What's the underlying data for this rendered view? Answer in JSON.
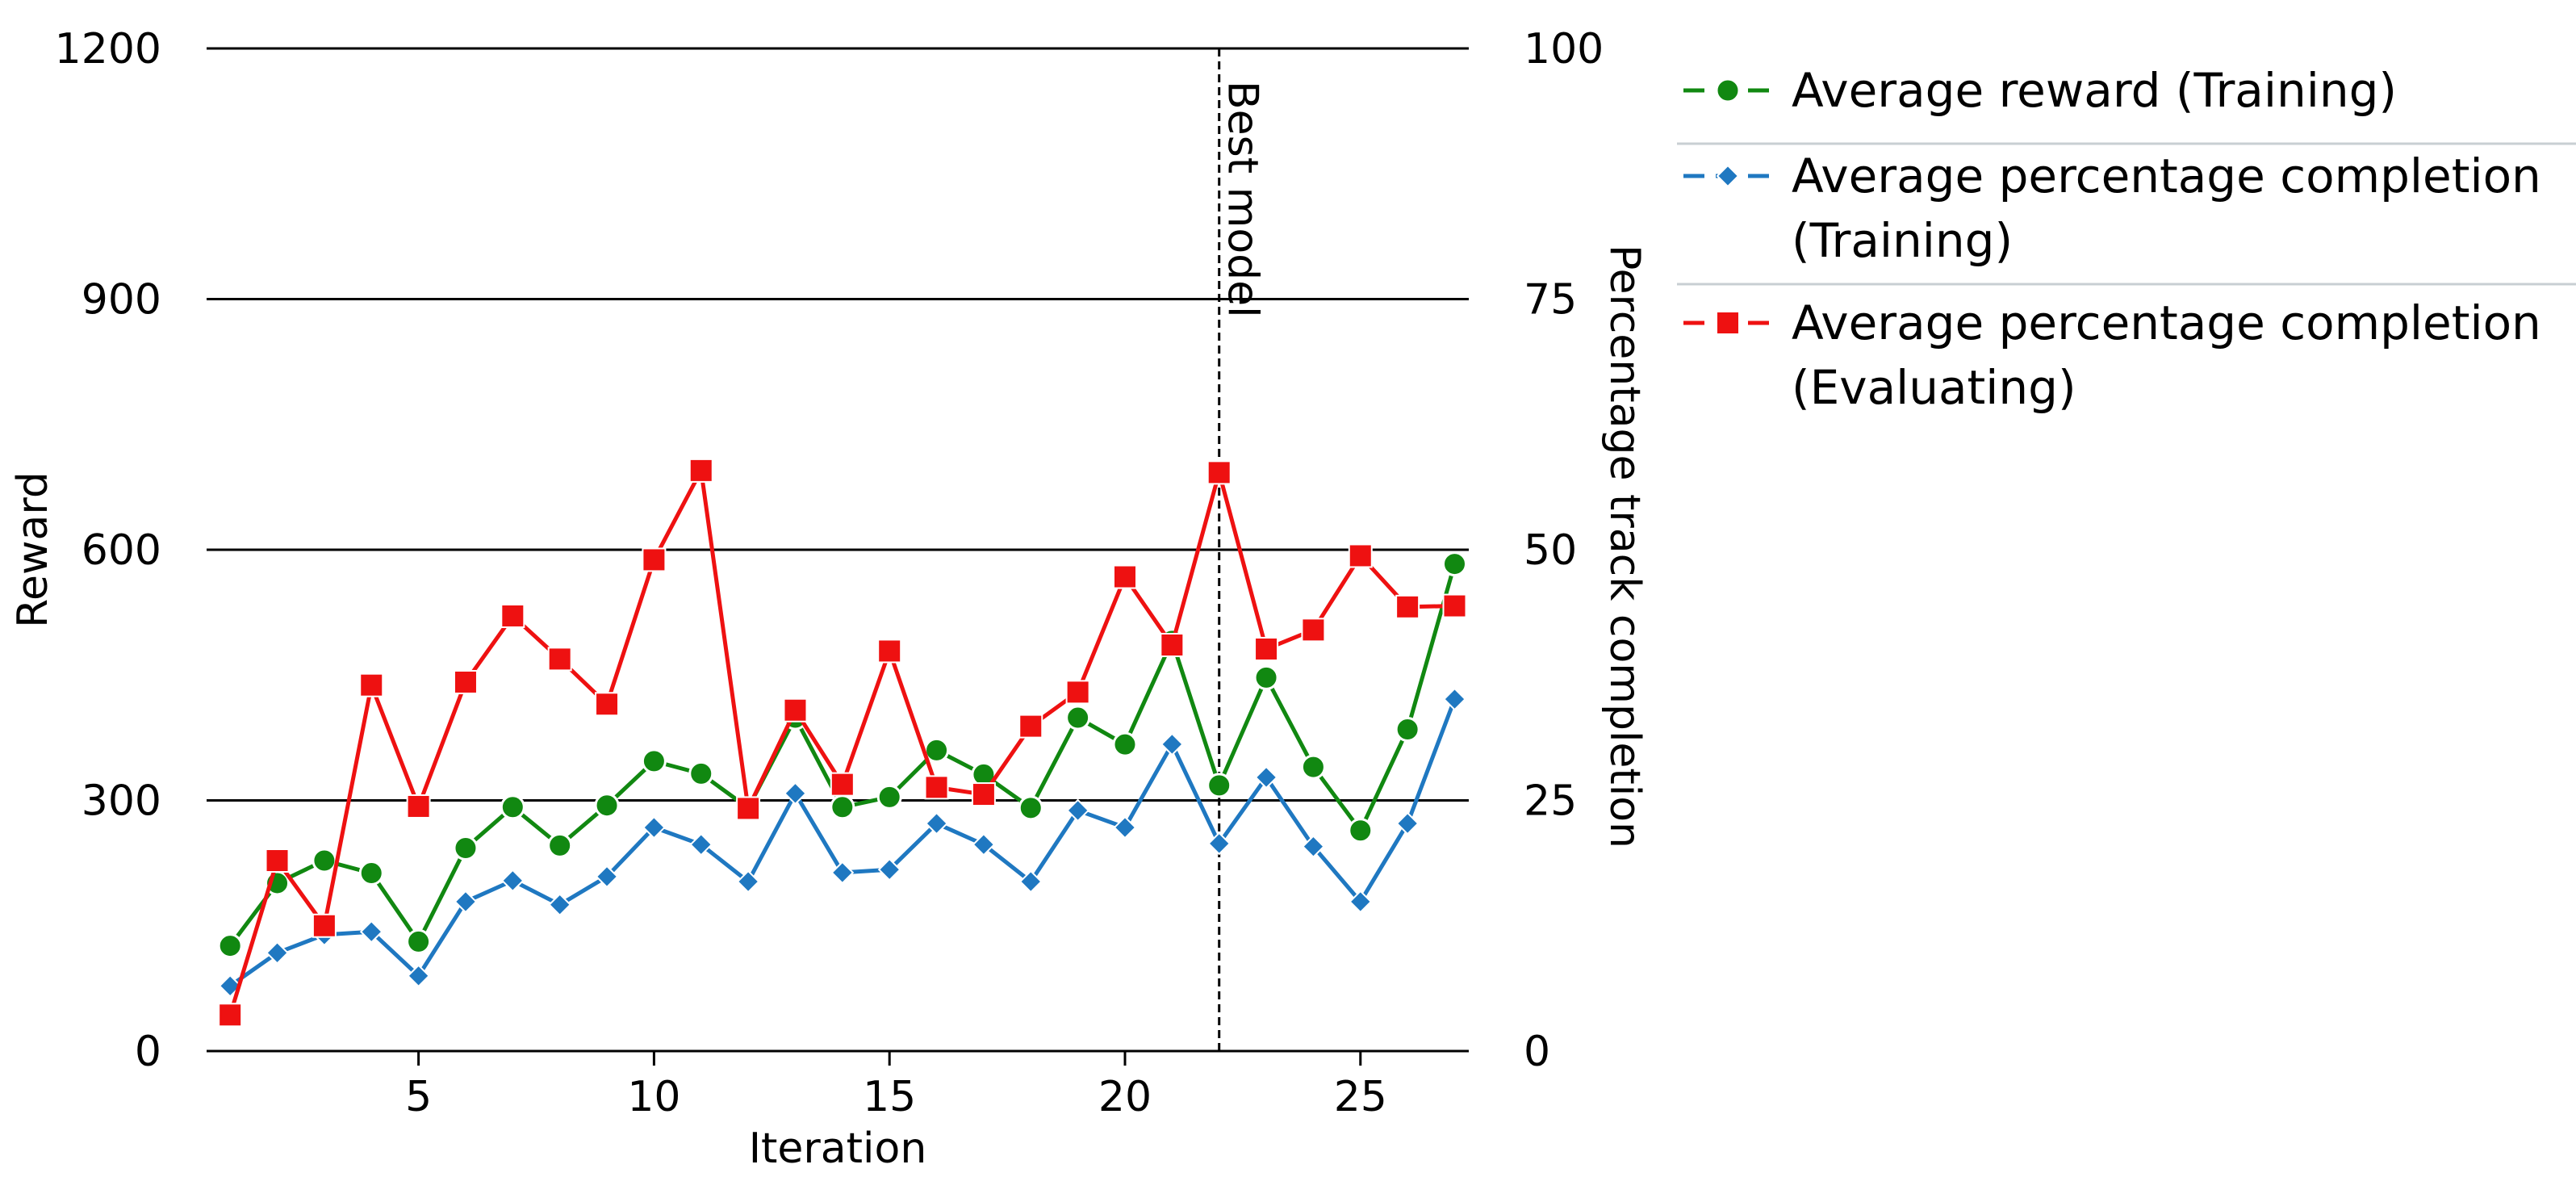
{
  "chart_data": {
    "type": "line",
    "title": "",
    "xlabel": "Iteration",
    "ylabel": "Reward",
    "y2label": "Percentage track completion",
    "xlim": [
      0.5,
      27.3
    ],
    "ylim": [
      0,
      1200
    ],
    "y2lim": [
      0,
      100
    ],
    "xticks": [
      5,
      10,
      15,
      20,
      25
    ],
    "yticks": [
      0,
      300,
      600,
      900,
      1200
    ],
    "y2ticks": [
      0,
      25,
      50,
      75,
      100
    ],
    "grid": "horizontal",
    "legend_position": "right",
    "x": [
      1,
      2,
      3,
      4,
      5,
      6,
      7,
      8,
      9,
      10,
      11,
      12,
      13,
      14,
      15,
      16,
      17,
      18,
      19,
      20,
      21,
      22,
      23,
      24,
      25,
      26,
      27
    ],
    "series": [
      {
        "name": "Average reward (Training)",
        "legend_lines": [
          "Average reward (Training)"
        ],
        "axis": "left",
        "color": "#118811",
        "marker": "circle",
        "values": [
          126,
          201,
          228,
          213,
          131,
          243,
          292,
          246,
          294,
          347,
          332,
          291,
          399,
          292,
          304,
          360,
          331,
          291,
          399,
          367,
          491,
          318,
          447,
          340,
          264,
          385,
          583
        ]
      },
      {
        "name": "Average percentage completion (Training)",
        "legend_lines": [
          "Average percentage completion",
          "(Training)"
        ],
        "axis": "right",
        "color": "#1f78c1",
        "marker": "diamond",
        "values": [
          6.5,
          9.8,
          11.6,
          11.9,
          7.5,
          14.9,
          17.0,
          14.6,
          17.4,
          22.3,
          20.6,
          16.9,
          25.7,
          17.8,
          18.1,
          22.7,
          20.6,
          16.9,
          24.0,
          22.3,
          30.6,
          20.7,
          27.3,
          20.4,
          14.9,
          22.7,
          35.1
        ]
      },
      {
        "name": "Average percentage completion (Evaluating)",
        "legend_lines": [
          "Average percentage completion",
          "(Evaluating)"
        ],
        "axis": "right",
        "color": "#ee1111",
        "marker": "square",
        "values": [
          3.6,
          19.0,
          12.5,
          36.5,
          24.4,
          36.8,
          43.4,
          39.1,
          34.6,
          49.0,
          57.9,
          24.2,
          34.0,
          26.6,
          39.9,
          26.3,
          25.6,
          32.4,
          35.8,
          47.3,
          40.5,
          57.7,
          40.1,
          42.0,
          49.4,
          44.3,
          44.4
        ]
      }
    ],
    "annotations": [
      {
        "type": "vline",
        "x": 22,
        "label": "Best model",
        "style": "dashed"
      }
    ]
  }
}
